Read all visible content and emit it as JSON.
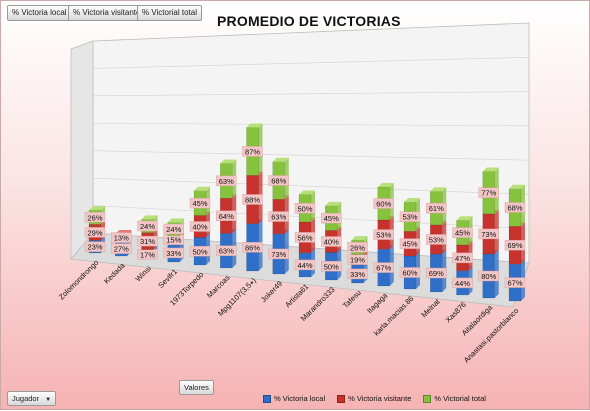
{
  "field_buttons": [
    "% Victoria local",
    "% Victoria visitante",
    "% Victorial total"
  ],
  "footer": {
    "valores_label": "Valores",
    "jugador_label": "Jugador"
  },
  "colors": {
    "local": "#2f6fc9",
    "visitante": "#c8322c",
    "total": "#86c23c",
    "label_bg": "#f2c6c6"
  },
  "chart_data": {
    "type": "bar",
    "subtype": "stacked-3d",
    "title": "PROMEDIO DE VICTORIAS",
    "xlabel": "",
    "ylabel": "",
    "grid": true,
    "legend_position": "bottom",
    "categories": [
      "Zolomondrongo",
      "Kedada",
      "Winsi",
      "Sevifr1",
      "1973Torpedo",
      "Marcoas",
      "Mpg1107(3,5⭑)",
      "Joker49",
      "Artista61",
      "Marandro333",
      "Tafesu",
      "Itagaga",
      "karla.macias.86",
      "Melnat",
      "Xas876",
      "Aitalaordiga",
      "Anastasi.pastorblanco"
    ],
    "series": [
      {
        "name": "% Victoria local",
        "values": [
          23,
          27,
          17,
          33,
          50,
          63,
          86,
          73,
          44,
          50,
          33,
          67,
          60,
          69,
          44,
          80,
          67
        ]
      },
      {
        "name": "% Victoria visitante",
        "values": [
          29,
          13,
          31,
          15,
          40,
          64,
          88,
          63,
          56,
          40,
          19,
          53,
          45,
          53,
          47,
          73,
          69
        ]
      },
      {
        "name": "% Victorial total",
        "values": [
          26,
          null,
          24,
          24,
          45,
          63,
          87,
          68,
          50,
          45,
          26,
          60,
          53,
          61,
          45,
          77,
          68
        ]
      }
    ]
  }
}
